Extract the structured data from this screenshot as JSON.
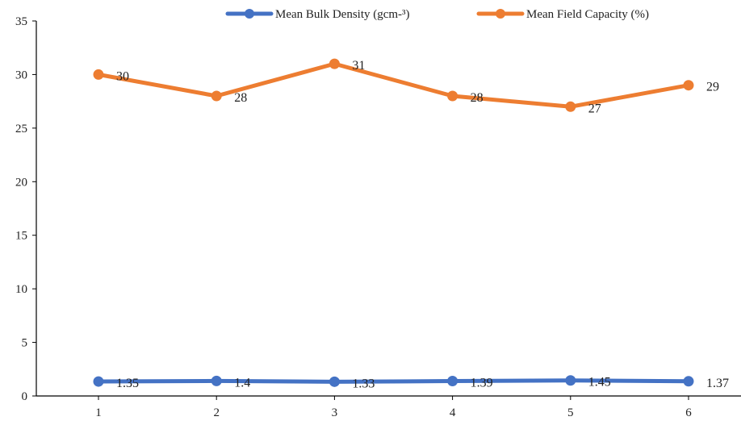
{
  "chart_data": {
    "type": "line",
    "title": "",
    "xlabel": "",
    "ylabel": "",
    "categories": [
      "1",
      "2",
      "3",
      "4",
      "5",
      "6"
    ],
    "ylim": [
      0,
      35
    ],
    "yticks": [
      "0",
      "5",
      "10",
      "15",
      "20",
      "25",
      "30",
      "35"
    ],
    "grid": false,
    "legend_position": "top",
    "series": [
      {
        "name": "Mean Bulk Density (gcm-³)",
        "color": "#4472C4",
        "values": [
          1.35,
          1.4,
          1.33,
          1.39,
          1.45,
          1.37
        ],
        "labels": [
          "1.35",
          "1.4",
          "1.33",
          "1.39",
          "1.45",
          "1.37"
        ]
      },
      {
        "name": "Mean Field Capacity (%)",
        "color": "#ED7D31",
        "values": [
          30,
          28,
          31,
          28,
          27,
          29
        ],
        "labels": [
          "30",
          "28",
          "31",
          "28",
          "27",
          "29"
        ]
      }
    ]
  }
}
